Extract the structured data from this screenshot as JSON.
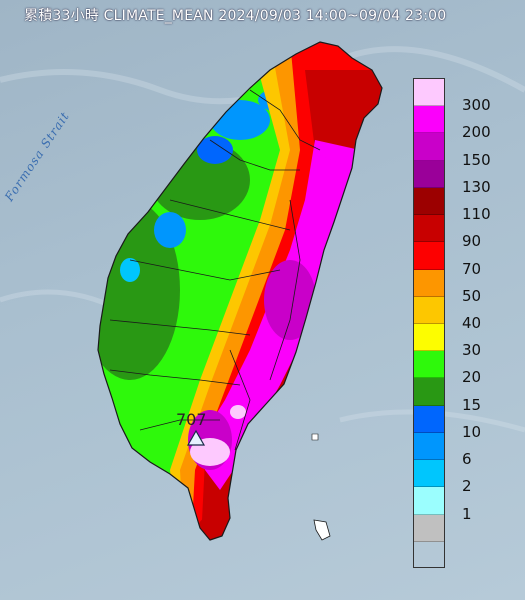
{
  "title": "累積33小時 CLIMATE_MEAN 2024/09/03 14:00~09/04 23:00",
  "strait_label": "Formosa Strait",
  "max_marker": {
    "value": "707",
    "icon": "triangle-station-icon"
  },
  "scale_bottom_color": "#c0c0c0",
  "legend": [
    {
      "label": "300",
      "color": "#fdc9fe"
    },
    {
      "label": "200",
      "color": "#fb00fb"
    },
    {
      "label": "150",
      "color": "#c900c9"
    },
    {
      "label": "130",
      "color": "#9a0099"
    },
    {
      "label": "110",
      "color": "#9c0000"
    },
    {
      "label": "90",
      "color": "#c80000"
    },
    {
      "label": "70",
      "color": "#fd0000"
    },
    {
      "label": "50",
      "color": "#fd9600"
    },
    {
      "label": "40",
      "color": "#fdc700"
    },
    {
      "label": "30",
      "color": "#fdfd00"
    },
    {
      "label": "20",
      "color": "#2ef90b"
    },
    {
      "label": "15",
      "color": "#299814"
    },
    {
      "label": "10",
      "color": "#0066fd"
    },
    {
      "label": "6",
      "color": "#0096fd"
    },
    {
      "label": "2",
      "color": "#00c6fd"
    },
    {
      "label": "1",
      "color": "#9bfefe"
    },
    {
      "label": "",
      "color": "#c0c0c0"
    }
  ]
}
